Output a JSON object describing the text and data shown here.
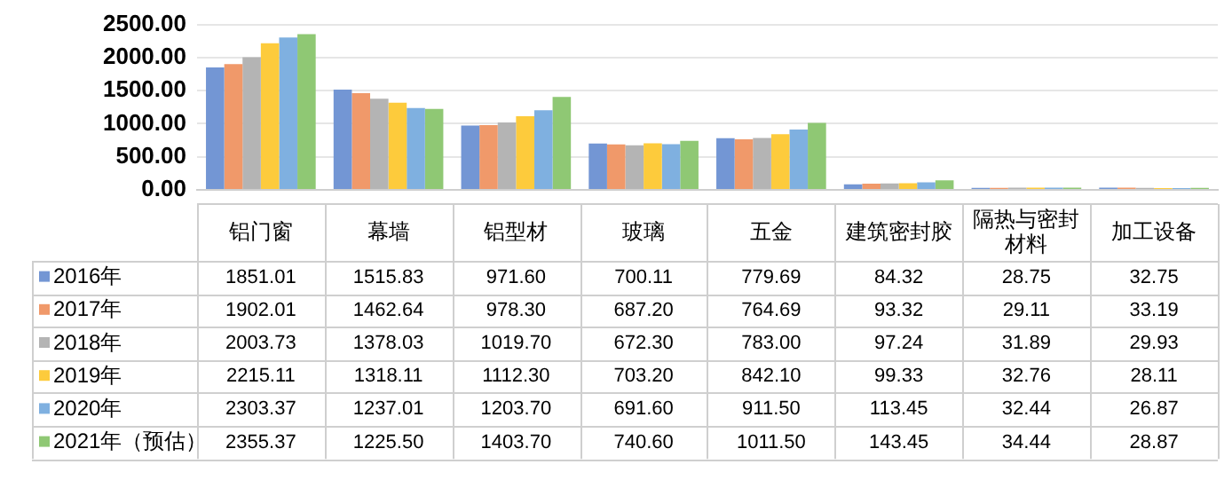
{
  "chart_data": {
    "type": "bar",
    "categories": [
      "铝门窗",
      "幕墙",
      "铝型材",
      "玻璃",
      "五金",
      "建筑密封胶",
      "隔热与密封材料",
      "加工设备"
    ],
    "series": [
      {
        "name": "2016年",
        "color": "#7396d4",
        "values": [
          1851.01,
          1515.83,
          971.6,
          700.11,
          779.69,
          84.32,
          28.75,
          32.75
        ],
        "value_labels": [
          "1851.01",
          "1515.83",
          "971.60",
          "700.11",
          "779.69",
          "84.32",
          "28.75",
          "32.75"
        ]
      },
      {
        "name": "2017年",
        "color": "#f0996a",
        "values": [
          1902.01,
          1462.64,
          978.3,
          687.2,
          764.69,
          93.32,
          29.11,
          33.19
        ],
        "value_labels": [
          "1902.01",
          "1462.64",
          "978.30",
          "687.20",
          "764.69",
          "93.32",
          "29.11",
          "33.19"
        ]
      },
      {
        "name": "2018年",
        "color": "#b4b4b4",
        "values": [
          2003.73,
          1378.03,
          1019.7,
          672.3,
          783.0,
          97.24,
          31.89,
          29.93
        ],
        "value_labels": [
          "2003.73",
          "1378.03",
          "1019.70",
          "672.30",
          "783.00",
          "97.24",
          "31.89",
          "29.93"
        ]
      },
      {
        "name": "2019年",
        "color": "#fdcb3c",
        "values": [
          2215.11,
          1318.11,
          1112.3,
          703.2,
          842.1,
          99.33,
          32.76,
          28.11
        ],
        "value_labels": [
          "2215.11",
          "1318.11",
          "1112.30",
          "703.20",
          "842.10",
          "99.33",
          "32.76",
          "28.11"
        ]
      },
      {
        "name": "2020年",
        "color": "#7fb0e0",
        "values": [
          2303.37,
          1237.01,
          1203.7,
          691.6,
          911.5,
          113.45,
          32.44,
          26.87
        ],
        "value_labels": [
          "2303.37",
          "1237.01",
          "1203.70",
          "691.60",
          "911.50",
          "113.45",
          "32.44",
          "26.87"
        ]
      },
      {
        "name": "2021年（预估）",
        "color": "#8fc874",
        "values": [
          2355.37,
          1225.5,
          1403.7,
          740.6,
          1011.5,
          143.45,
          34.44,
          28.87
        ],
        "value_labels": [
          "2355.37",
          "1225.50",
          "1403.70",
          "740.60",
          "1011.50",
          "143.45",
          "34.44",
          "28.87"
        ]
      }
    ],
    "ylim": [
      0,
      2500
    ],
    "yticks": [
      {
        "value": 0,
        "label": "0.00"
      },
      {
        "value": 500,
        "label": "500.00"
      },
      {
        "value": 1000,
        "label": "1000.00"
      },
      {
        "value": 1500,
        "label": "1500.00"
      },
      {
        "value": 2000,
        "label": "2000.00"
      },
      {
        "value": 2500,
        "label": "2500.00"
      }
    ],
    "grid": "y",
    "legend": "bottom"
  }
}
